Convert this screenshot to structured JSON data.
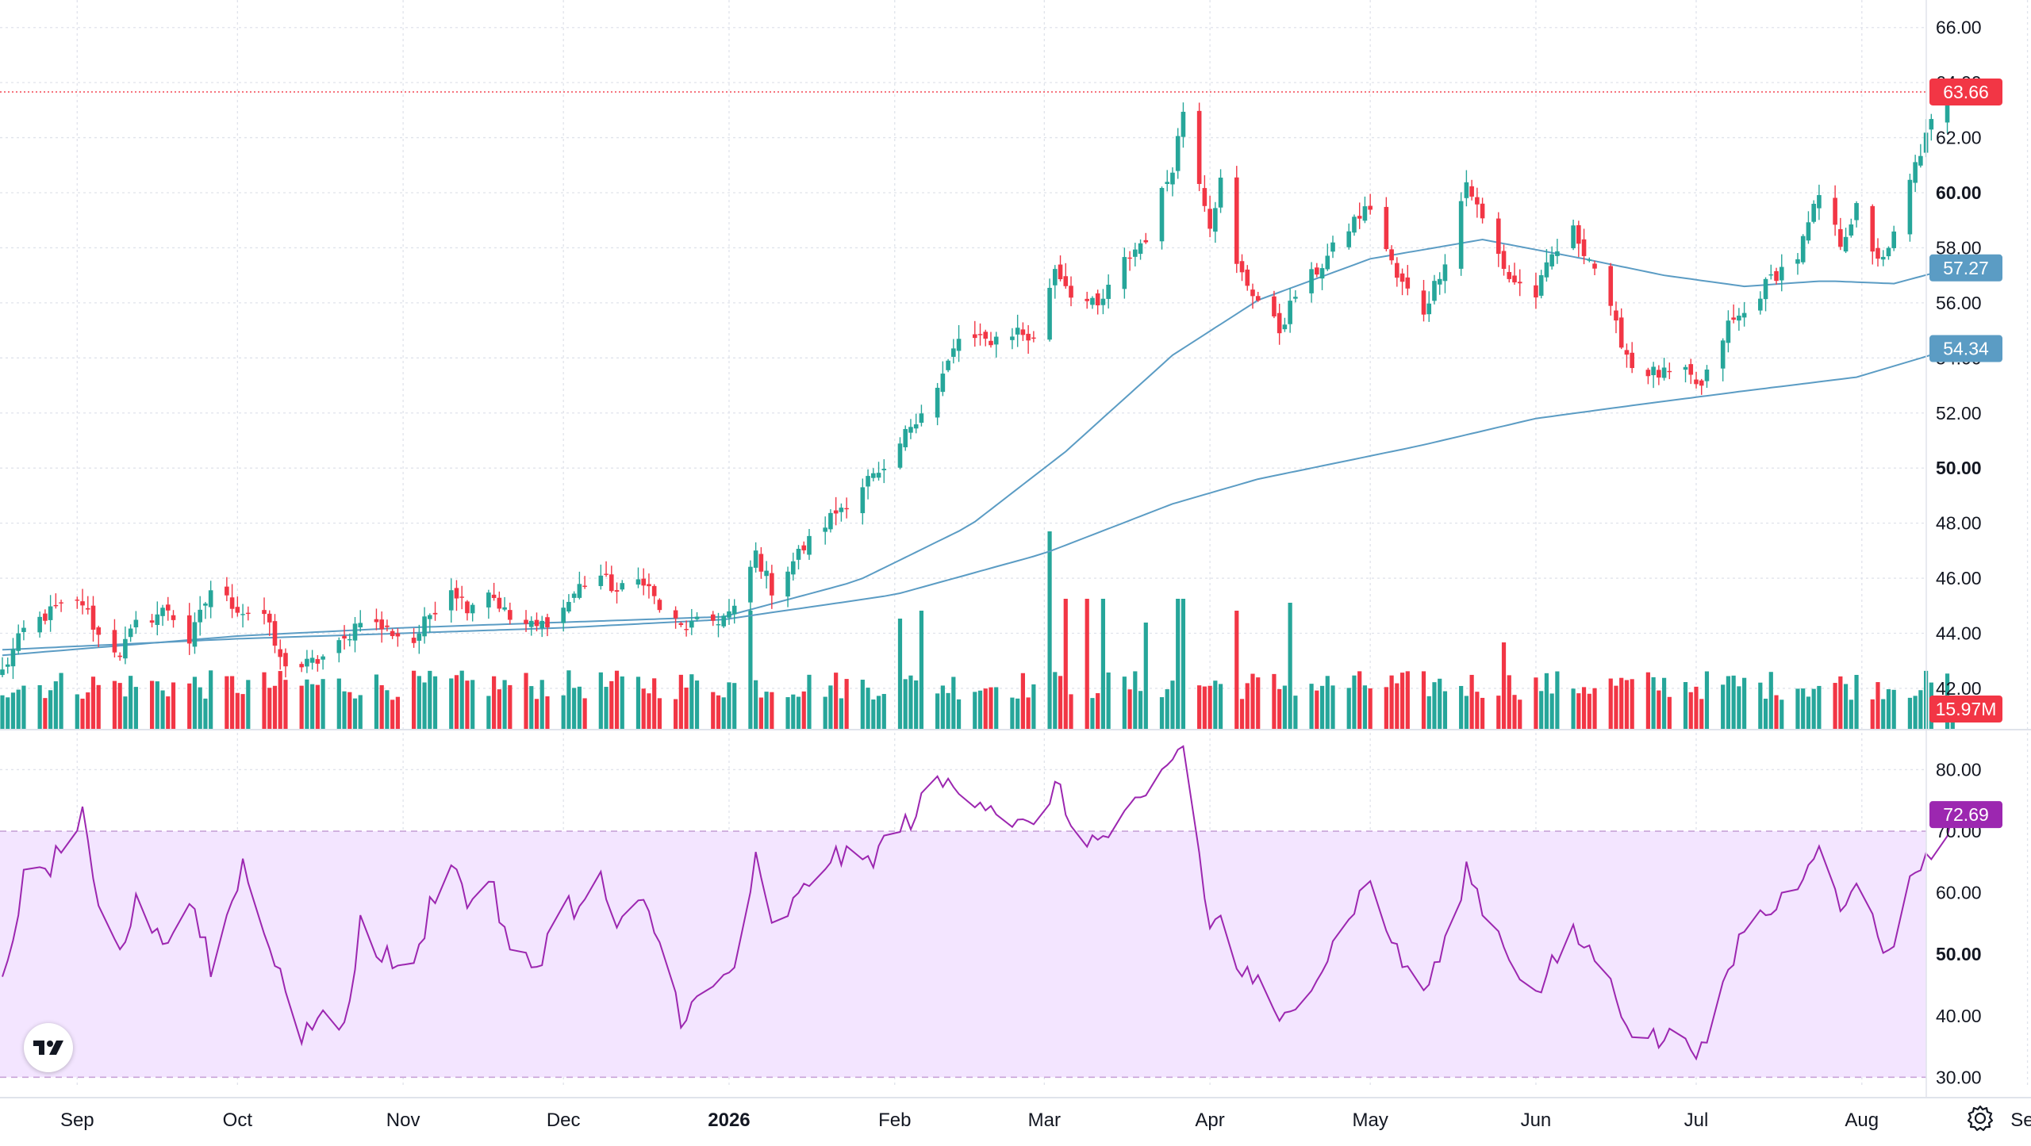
{
  "chart_data": [
    {
      "type": "candlestick",
      "title": "",
      "price_scale": {
        "ylim": [
          40.5,
          67.0
        ],
        "ticks": [
          42.0,
          44.0,
          46.0,
          48.0,
          50.0,
          52.0,
          54.0,
          56.0,
          58.0,
          60.0,
          62.0,
          64.0,
          66.0
        ],
        "bold_ticks": [
          50.0,
          60.0
        ]
      },
      "time_axis": {
        "labels": [
          {
            "label": "Sep",
            "date": "2025-09-01",
            "bold": false
          },
          {
            "label": "Oct",
            "date": "2025-10-01",
            "bold": false
          },
          {
            "label": "Nov",
            "date": "2025-11-01",
            "bold": false
          },
          {
            "label": "Dec",
            "date": "2025-12-01",
            "bold": false
          },
          {
            "label": "2026",
            "date": "2026-01-01",
            "bold": true
          },
          {
            "label": "Feb",
            "date": "2026-02-01",
            "bold": false
          },
          {
            "label": "Mar",
            "date": "2026-03-01",
            "bold": false
          },
          {
            "label": "Apr",
            "date": "2026-04-01",
            "bold": false
          },
          {
            "label": "May",
            "date": "2026-05-01",
            "bold": false
          },
          {
            "label": "Jun",
            "date": "2026-06-01",
            "bold": false
          },
          {
            "label": "Jul",
            "date": "2026-07-01",
            "bold": false
          },
          {
            "label": "Aug",
            "date": "2026-08-01",
            "bold": false
          },
          {
            "label": "Sep",
            "date": "2026-09-01",
            "bold": false
          }
        ]
      },
      "close_anchors": [
        [
          "2025-08-18",
          42.6
        ],
        [
          "2025-08-22",
          44.1
        ],
        [
          "2025-08-28",
          44.9
        ],
        [
          "2025-09-02",
          45.1
        ],
        [
          "2025-09-05",
          43.9
        ],
        [
          "2025-09-09",
          43.3
        ],
        [
          "2025-09-12",
          44.3
        ],
        [
          "2025-09-18",
          44.9
        ],
        [
          "2025-09-22",
          43.7
        ],
        [
          "2025-09-26",
          45.6
        ],
        [
          "2025-10-02",
          44.8
        ],
        [
          "2025-10-06",
          44.7
        ],
        [
          "2025-10-09",
          43.0
        ],
        [
          "2025-10-13",
          42.8
        ],
        [
          "2025-10-16",
          43.0
        ],
        [
          "2025-10-21",
          43.7
        ],
        [
          "2025-10-24",
          44.6
        ],
        [
          "2025-10-28",
          44.2
        ],
        [
          "2025-11-03",
          43.7
        ],
        [
          "2025-11-06",
          44.7
        ],
        [
          "2025-11-10",
          45.7
        ],
        [
          "2025-11-13",
          45.0
        ],
        [
          "2025-11-17",
          45.6
        ],
        [
          "2025-11-21",
          44.5
        ],
        [
          "2025-11-26",
          44.2
        ],
        [
          "2025-12-01",
          44.9
        ],
        [
          "2025-12-04",
          45.7
        ],
        [
          "2025-12-08",
          46.1
        ],
        [
          "2025-12-11",
          45.5
        ],
        [
          "2025-12-16",
          46.0
        ],
        [
          "2025-12-19",
          44.9
        ],
        [
          "2025-12-23",
          44.2
        ],
        [
          "2025-12-30",
          44.5
        ],
        [
          "2026-01-02",
          44.8
        ],
        [
          "2026-01-06",
          46.9
        ],
        [
          "2026-01-09",
          45.6
        ],
        [
          "2026-01-14",
          46.9
        ],
        [
          "2026-01-20",
          48.2
        ],
        [
          "2026-01-27",
          49.6
        ],
        [
          "2026-01-30",
          49.7
        ],
        [
          "2026-02-04",
          51.6
        ],
        [
          "2026-02-09",
          52.9
        ],
        [
          "2026-02-13",
          54.7
        ],
        [
          "2026-02-18",
          54.6
        ],
        [
          "2026-02-24",
          55.0
        ],
        [
          "2026-02-27",
          54.6
        ],
        [
          "2026-03-03",
          57.3
        ],
        [
          "2026-03-06",
          56.4
        ],
        [
          "2026-03-11",
          55.8
        ],
        [
          "2026-03-16",
          57.5
        ],
        [
          "2026-03-20",
          58.4
        ],
        [
          "2026-03-25",
          61.0
        ],
        [
          "2026-03-27",
          63.0
        ],
        [
          "2026-04-01",
          58.9
        ],
        [
          "2026-04-03",
          60.4
        ],
        [
          "2026-04-06",
          57.3
        ],
        [
          "2026-04-10",
          56.1
        ],
        [
          "2026-04-14",
          55.0
        ],
        [
          "2026-04-17",
          56.3
        ],
        [
          "2026-04-22",
          57.4
        ],
        [
          "2026-04-28",
          59.0
        ],
        [
          "2026-05-01",
          59.5
        ],
        [
          "2026-05-06",
          56.9
        ],
        [
          "2026-05-11",
          55.7
        ],
        [
          "2026-05-15",
          57.6
        ],
        [
          "2026-05-19",
          60.4
        ],
        [
          "2026-05-22",
          59.0
        ],
        [
          "2026-05-27",
          56.9
        ],
        [
          "2026-06-01",
          56.3
        ],
        [
          "2026-06-04",
          57.7
        ],
        [
          "2026-06-08",
          58.6
        ],
        [
          "2026-06-12",
          57.3
        ],
        [
          "2026-06-16",
          55.1
        ],
        [
          "2026-06-19",
          53.7
        ],
        [
          "2026-06-24",
          53.4
        ],
        [
          "2026-06-29",
          53.4
        ],
        [
          "2026-07-02",
          52.9
        ],
        [
          "2026-07-07",
          55.2
        ],
        [
          "2026-07-10",
          55.6
        ],
        [
          "2026-07-15",
          56.9
        ],
        [
          "2026-07-20",
          57.7
        ],
        [
          "2026-07-24",
          59.9
        ],
        [
          "2026-07-28",
          58.2
        ],
        [
          "2026-07-31",
          59.4
        ],
        [
          "2026-08-03",
          57.7
        ],
        [
          "2026-08-06",
          57.8
        ],
        [
          "2026-08-11",
          61.0
        ],
        [
          "2026-08-14",
          62.5
        ],
        [
          "2026-08-18",
          63.66
        ]
      ],
      "series": [
        {
          "name": "",
          "kind": "moving-average",
          "color": "#5b9cc4",
          "last_value": "57.27",
          "anchors": [
            [
              "2025-08-18",
              43.2
            ],
            [
              "2025-10-01",
              43.9
            ],
            [
              "2025-11-01",
              44.2
            ],
            [
              "2025-12-01",
              44.4
            ],
            [
              "2025-12-31",
              44.6
            ],
            [
              "2026-01-25",
              45.9
            ],
            [
              "2026-02-15",
              47.9
            ],
            [
              "2026-03-05",
              50.6
            ],
            [
              "2026-03-25",
              54.1
            ],
            [
              "2026-04-10",
              56.1
            ],
            [
              "2026-05-01",
              57.6
            ],
            [
              "2026-05-22",
              58.3
            ],
            [
              "2026-06-10",
              57.6
            ],
            [
              "2026-06-25",
              57.0
            ],
            [
              "2026-07-10",
              56.6
            ],
            [
              "2026-07-25",
              56.8
            ],
            [
              "2026-08-07",
              56.7
            ],
            [
              "2026-08-18",
              57.27
            ]
          ]
        },
        {
          "name": "",
          "kind": "moving-average",
          "color": "#5b9cc4",
          "last_value": "54.34",
          "anchors": [
            [
              "2025-08-18",
              43.4
            ],
            [
              "2025-10-01",
              43.8
            ],
            [
              "2025-11-01",
              44.0
            ],
            [
              "2025-12-01",
              44.2
            ],
            [
              "2025-12-31",
              44.5
            ],
            [
              "2026-02-01",
              45.4
            ],
            [
              "2026-03-01",
              46.9
            ],
            [
              "2026-03-25",
              48.7
            ],
            [
              "2026-04-10",
              49.6
            ],
            [
              "2026-05-10",
              50.8
            ],
            [
              "2026-06-01",
              51.8
            ],
            [
              "2026-06-20",
              52.3
            ],
            [
              "2026-07-10",
              52.8
            ],
            [
              "2026-07-31",
              53.3
            ],
            [
              "2026-08-18",
              54.34
            ]
          ]
        }
      ],
      "last_price": {
        "value": "63.66",
        "color": "#f23645"
      },
      "volume": {
        "last_value": "15.97M",
        "up_color": "#26a69a",
        "down_color": "#f23645",
        "spikes": [
          [
            "2026-01-05",
            3.0
          ],
          [
            "2026-02-02",
            2.8
          ],
          [
            "2026-02-06",
            3.0
          ],
          [
            "2026-03-02",
            5.0
          ],
          [
            "2026-03-05",
            3.3
          ],
          [
            "2026-03-09",
            3.3
          ],
          [
            "2026-03-12",
            3.3
          ],
          [
            "2026-03-20",
            2.7
          ],
          [
            "2026-03-26",
            3.3
          ],
          [
            "2026-03-27",
            3.3
          ],
          [
            "2026-04-06",
            3.0
          ],
          [
            "2026-04-16",
            3.2
          ],
          [
            "2026-05-26",
            2.2
          ]
        ]
      },
      "colors": {
        "up": "#26a69a",
        "down": "#f23645",
        "ma": "#5b9cc4",
        "grid": "#e0e3eb"
      }
    },
    {
      "type": "line",
      "indicator": "RSI",
      "ylim": [
        28.5,
        86.5
      ],
      "ticks": [
        30.0,
        40.0,
        50.0,
        60.0,
        70.0,
        80.0
      ],
      "bold_ticks": [
        50.0
      ],
      "band": [
        30,
        70
      ],
      "last_value": "72.69",
      "colors": {
        "line": "#9c27b0",
        "band_fill": "#f3e5ff",
        "band_border": "#c8a4d8",
        "badge": "#9c27b0"
      },
      "anchors": [
        [
          "2025-08-18",
          45
        ],
        [
          "2025-08-22",
          62
        ],
        [
          "2025-08-26",
          63
        ],
        [
          "2025-09-01",
          71
        ],
        [
          "2025-09-02",
          72
        ],
        [
          "2025-09-05",
          56
        ],
        [
          "2025-09-09",
          50
        ],
        [
          "2025-09-12",
          58
        ],
        [
          "2025-09-18",
          52
        ],
        [
          "2025-09-22",
          59
        ],
        [
          "2025-09-25",
          52
        ],
        [
          "2025-09-26",
          47
        ],
        [
          "2025-10-02",
          65
        ],
        [
          "2025-10-06",
          53
        ],
        [
          "2025-10-09",
          48
        ],
        [
          "2025-10-13",
          35
        ],
        [
          "2025-10-16",
          41
        ],
        [
          "2025-10-21",
          37
        ],
        [
          "2025-10-24",
          55
        ],
        [
          "2025-10-28",
          50
        ],
        [
          "2025-11-03",
          47
        ],
        [
          "2025-11-06",
          58
        ],
        [
          "2025-11-10",
          66
        ],
        [
          "2025-11-13",
          58
        ],
        [
          "2025-11-17",
          63
        ],
        [
          "2025-11-21",
          50
        ],
        [
          "2025-11-26",
          48
        ],
        [
          "2025-12-01",
          59
        ],
        [
          "2025-12-04",
          57
        ],
        [
          "2025-12-08",
          62
        ],
        [
          "2025-12-11",
          54
        ],
        [
          "2025-12-16",
          58
        ],
        [
          "2025-12-19",
          52
        ],
        [
          "2025-12-23",
          40
        ],
        [
          "2025-12-30",
          45
        ],
        [
          "2026-01-02",
          48
        ],
        [
          "2026-01-06",
          65
        ],
        [
          "2026-01-09",
          54
        ],
        [
          "2026-01-14",
          59
        ],
        [
          "2026-01-20",
          66
        ],
        [
          "2026-01-27",
          65
        ],
        [
          "2026-01-30",
          68
        ],
        [
          "2026-02-04",
          72
        ],
        [
          "2026-02-09",
          78
        ],
        [
          "2026-02-13",
          77
        ],
        [
          "2026-02-18",
          75
        ],
        [
          "2026-02-24",
          71
        ],
        [
          "2026-02-27",
          70
        ],
        [
          "2026-03-03",
          78
        ],
        [
          "2026-03-06",
          71
        ],
        [
          "2026-03-11",
          68
        ],
        [
          "2026-03-16",
          72
        ],
        [
          "2026-03-20",
          75
        ],
        [
          "2026-03-25",
          82
        ],
        [
          "2026-03-27",
          84
        ],
        [
          "2026-04-01",
          54
        ],
        [
          "2026-04-03",
          56
        ],
        [
          "2026-04-06",
          48
        ],
        [
          "2026-04-10",
          45
        ],
        [
          "2026-04-14",
          38
        ],
        [
          "2026-04-17",
          43
        ],
        [
          "2026-04-22",
          48
        ],
        [
          "2026-04-28",
          58
        ],
        [
          "2026-05-01",
          62
        ],
        [
          "2026-05-06",
          50
        ],
        [
          "2026-05-11",
          44
        ],
        [
          "2026-05-15",
          51
        ],
        [
          "2026-05-19",
          64
        ],
        [
          "2026-05-22",
          58
        ],
        [
          "2026-05-27",
          50
        ],
        [
          "2026-06-01",
          43
        ],
        [
          "2026-06-04",
          48
        ],
        [
          "2026-06-08",
          53
        ],
        [
          "2026-06-12",
          50
        ],
        [
          "2026-06-16",
          43
        ],
        [
          "2026-06-19",
          38
        ],
        [
          "2026-06-24",
          36
        ],
        [
          "2026-06-29",
          37
        ],
        [
          "2026-07-02",
          34
        ],
        [
          "2026-07-07",
          46
        ],
        [
          "2026-07-10",
          55
        ],
        [
          "2026-07-15",
          57
        ],
        [
          "2026-07-20",
          62
        ],
        [
          "2026-07-24",
          69
        ],
        [
          "2026-07-28",
          56
        ],
        [
          "2026-07-31",
          63
        ],
        [
          "2026-08-03",
          55
        ],
        [
          "2026-08-06",
          50
        ],
        [
          "2026-08-11",
          64
        ],
        [
          "2026-08-14",
          66
        ],
        [
          "2026-08-18",
          72.69
        ]
      ]
    }
  ],
  "footer": {
    "settings_icon": "settings-gear-icon"
  },
  "branding": {
    "logo_icon": "tradingview-logo-icon"
  }
}
